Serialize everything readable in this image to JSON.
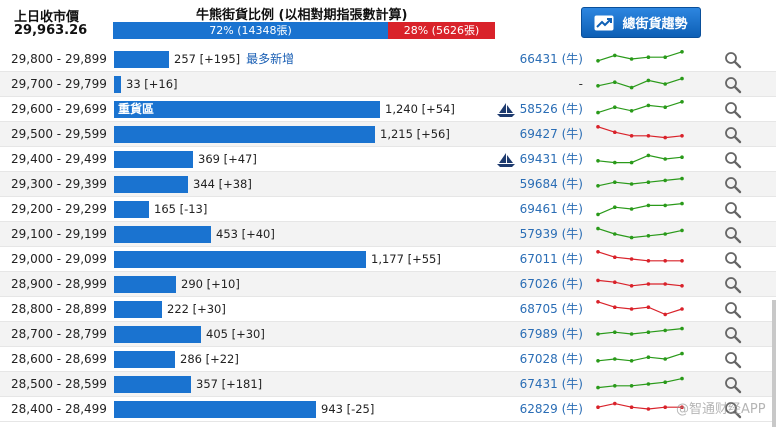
{
  "header": {
    "prev_close_label": "上日收市價",
    "prev_close_value": "29,963.26",
    "ratio_title": "牛熊街貨比例 (以相對期指張數計算)",
    "bull_fraction": 0.72,
    "bull_text": "72% (14348張)",
    "bear_text": "28% (5626張)",
    "trend_button_label": "總街貨趨勢",
    "colors": {
      "bull": "#1a73d0",
      "bear": "#d9222a",
      "spark_up": "#2a9a1a",
      "spark_down": "#d9222a"
    }
  },
  "scale_max": 1240,
  "rows": [
    {
      "range": "29,800 - 29,899",
      "value": 257,
      "count": "257 [+195]",
      "note": "最多新增",
      "inbar": "",
      "ship": false,
      "issuer": "66431 (牛)",
      "trend": "up",
      "spark": [
        4,
        7,
        5,
        6,
        6,
        9
      ]
    },
    {
      "range": "29,700 - 29,799",
      "value": 33,
      "count": "33 [+16]",
      "note": "",
      "inbar": "",
      "ship": false,
      "issuer": "-",
      "trend": "up",
      "spark": [
        4,
        6,
        3,
        7,
        5,
        8
      ]
    },
    {
      "range": "29,600 - 29,699",
      "value": 1240,
      "count": "1,240 [+54]",
      "note": "",
      "inbar": "重貨區",
      "ship": true,
      "issuer": "58526 (牛)",
      "trend": "up",
      "spark": [
        3,
        6,
        4,
        7,
        6,
        9
      ]
    },
    {
      "range": "29,500 - 29,599",
      "value": 1215,
      "count": "1,215 [+56]",
      "note": "",
      "inbar": "",
      "ship": false,
      "issuer": "69427 (牛)",
      "trend": "down",
      "spark": [
        9,
        6,
        4,
        4,
        3,
        4
      ]
    },
    {
      "range": "29,400 - 29,499",
      "value": 369,
      "count": "369 [+47]",
      "note": "",
      "inbar": "",
      "ship": true,
      "issuer": "69431 (牛)",
      "trend": "up",
      "spark": [
        4,
        3,
        3,
        7,
        5,
        6
      ]
    },
    {
      "range": "29,300 - 29,399",
      "value": 344,
      "count": "344 [+38]",
      "note": "",
      "inbar": "",
      "ship": false,
      "issuer": "59684 (牛)",
      "trend": "up",
      "spark": [
        4,
        6,
        5,
        6,
        7,
        8
      ]
    },
    {
      "range": "29,200 - 29,299",
      "value": 165,
      "count": "165 [-13]",
      "note": "",
      "inbar": "",
      "ship": false,
      "issuer": "69461 (牛)",
      "trend": "up",
      "spark": [
        2,
        6,
        5,
        7,
        7,
        8
      ]
    },
    {
      "range": "29,100 - 29,199",
      "value": 453,
      "count": "453 [+40]",
      "note": "",
      "inbar": "",
      "ship": false,
      "issuer": "57939 (牛)",
      "trend": "up",
      "spark": [
        8,
        5,
        3,
        4,
        5,
        7
      ]
    },
    {
      "range": "29,000 - 29,099",
      "value": 1177,
      "count": "1,177 [+55]",
      "note": "",
      "inbar": "",
      "ship": false,
      "issuer": "67011 (牛)",
      "trend": "down",
      "spark": [
        9,
        6,
        5,
        4,
        4,
        4
      ]
    },
    {
      "range": "28,900 - 28,999",
      "value": 290,
      "count": "290 [+10]",
      "note": "",
      "inbar": "",
      "ship": false,
      "issuer": "67026 (牛)",
      "trend": "down",
      "spark": [
        7,
        6,
        4,
        5,
        5,
        4
      ]
    },
    {
      "range": "28,800 - 28,899",
      "value": 222,
      "count": "222 [+30]",
      "note": "",
      "inbar": "",
      "ship": false,
      "issuer": "68705 (牛)",
      "trend": "down",
      "spark": [
        9,
        6,
        5,
        6,
        2,
        5
      ]
    },
    {
      "range": "28,700 - 28,799",
      "value": 405,
      "count": "405 [+30]",
      "note": "",
      "inbar": "",
      "ship": false,
      "issuer": "67989 (牛)",
      "trend": "up",
      "spark": [
        5,
        6,
        5,
        6,
        7,
        8
      ]
    },
    {
      "range": "28,600 - 28,699",
      "value": 286,
      "count": "286 [+22]",
      "note": "",
      "inbar": "",
      "ship": false,
      "issuer": "67028 (牛)",
      "trend": "up",
      "spark": [
        4,
        5,
        4,
        6,
        5,
        8
      ]
    },
    {
      "range": "28,500 - 28,599",
      "value": 357,
      "count": "357 [+181]",
      "note": "",
      "inbar": "",
      "ship": false,
      "issuer": "67431 (牛)",
      "trend": "up",
      "spark": [
        3,
        4,
        4,
        5,
        6,
        8
      ]
    },
    {
      "range": "28,400 - 28,499",
      "value": 943,
      "count": "943 [-25]",
      "note": "",
      "inbar": "",
      "ship": false,
      "issuer": "62829 (牛)",
      "trend": "down",
      "spark": [
        6,
        8,
        6,
        5,
        6,
        6
      ]
    }
  ],
  "watermark": "@智通财经APP"
}
